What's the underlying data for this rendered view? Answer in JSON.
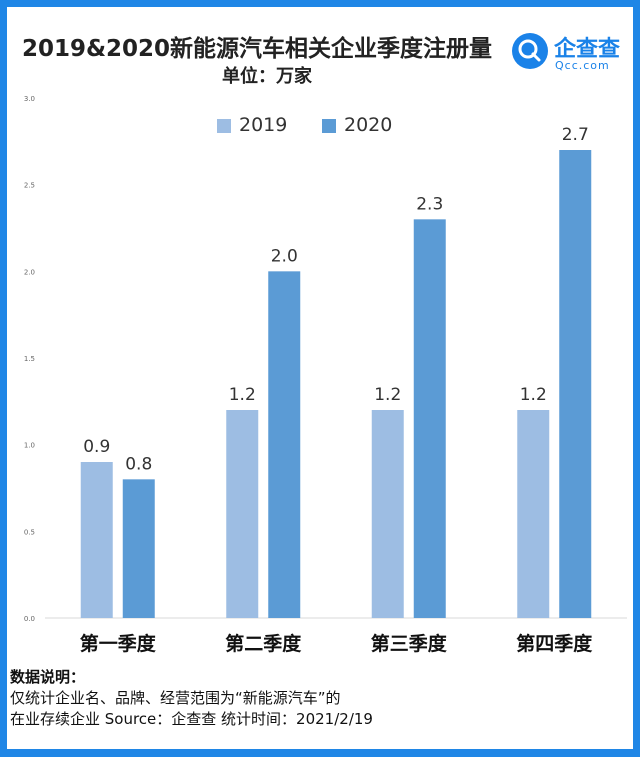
{
  "title": "2019&2020新能源汽车相关企业季度注册量",
  "subtitle": "单位：万家",
  "logo": {
    "cn": "企查查",
    "en": "Qcc.com"
  },
  "legend": [
    {
      "label": "2019",
      "color": "#9dbde3"
    },
    {
      "label": "2020",
      "color": "#5b9bd5"
    }
  ],
  "chart_data": {
    "type": "bar",
    "categories": [
      "第一季度",
      "第二季度",
      "第三季度",
      "第四季度"
    ],
    "series": [
      {
        "name": "2019",
        "values": [
          0.9,
          1.2,
          1.2,
          1.2
        ],
        "color": "#9dbde3",
        "labels": [
          "0.9",
          "1.2",
          "1.2",
          "1.2"
        ]
      },
      {
        "name": "2020",
        "values": [
          0.8,
          2.0,
          2.3,
          2.7
        ],
        "color": "#5b9bd5",
        "labels": [
          "0.8",
          "2.0",
          "2.3",
          "2.7"
        ]
      }
    ],
    "ylim": [
      0,
      3.0
    ],
    "yticks": [
      "0.0",
      "0.5",
      "1.0",
      "1.5",
      "2.0",
      "2.5",
      "3.0"
    ],
    "xlabel": "",
    "ylabel": "",
    "legend_position": "top-center",
    "grid": false
  },
  "notes": {
    "heading": "数据说明：",
    "line1": "仅统计企业名、品牌、经营范围为“新能源汽车”的",
    "line2": "在业存续企业    Source：企查查    统计时间：2021/2/19"
  }
}
